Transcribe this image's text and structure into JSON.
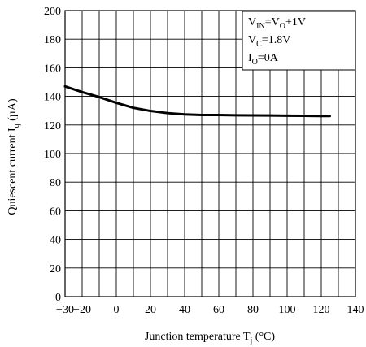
{
  "chart_data": {
    "type": "line",
    "title": "",
    "xlabel_main": "Junction temperature T",
    "xlabel_sub": "j",
    "xlabel_unit": " (°C)",
    "ylabel_main": "Quiescent current I",
    "ylabel_sub": "q",
    "ylabel_unit": " (µA)",
    "xlim": [
      -30,
      140
    ],
    "ylim": [
      0,
      200
    ],
    "xticks": [
      -30,
      -20,
      0,
      20,
      40,
      60,
      80,
      100,
      120,
      140
    ],
    "xtick_labels": [
      "−30",
      "−20",
      "0",
      "20",
      "40",
      "60",
      "80",
      "100",
      "120",
      "140"
    ],
    "xgrid": [
      -20,
      -10,
      0,
      10,
      20,
      30,
      40,
      50,
      60,
      70,
      80,
      90,
      100,
      110,
      120,
      130
    ],
    "yticks": [
      0,
      20,
      40,
      60,
      80,
      100,
      120,
      140,
      160,
      180,
      200
    ],
    "grid": true,
    "series": [
      {
        "x": [
          -30,
          -20,
          -10,
          0,
          10,
          20,
          30,
          40,
          50,
          60,
          70,
          80,
          90,
          100,
          110,
          120,
          125
        ],
        "y": [
          147,
          143,
          139.5,
          135.5,
          132,
          129.8,
          128.3,
          127.4,
          127,
          127,
          126.8,
          126.7,
          126.6,
          126.5,
          126.4,
          126.3,
          126.3
        ]
      }
    ],
    "conditions": {
      "line1": {
        "a": "V",
        "a_sub": "IN",
        "b": "=V",
        "b_sub": "O",
        "c": "+1V"
      },
      "line2": {
        "a": "V",
        "a_sub": "C",
        "b": "=1.8V"
      },
      "line3": {
        "a": "I",
        "a_sub": "O",
        "b": "=0A"
      }
    }
  }
}
